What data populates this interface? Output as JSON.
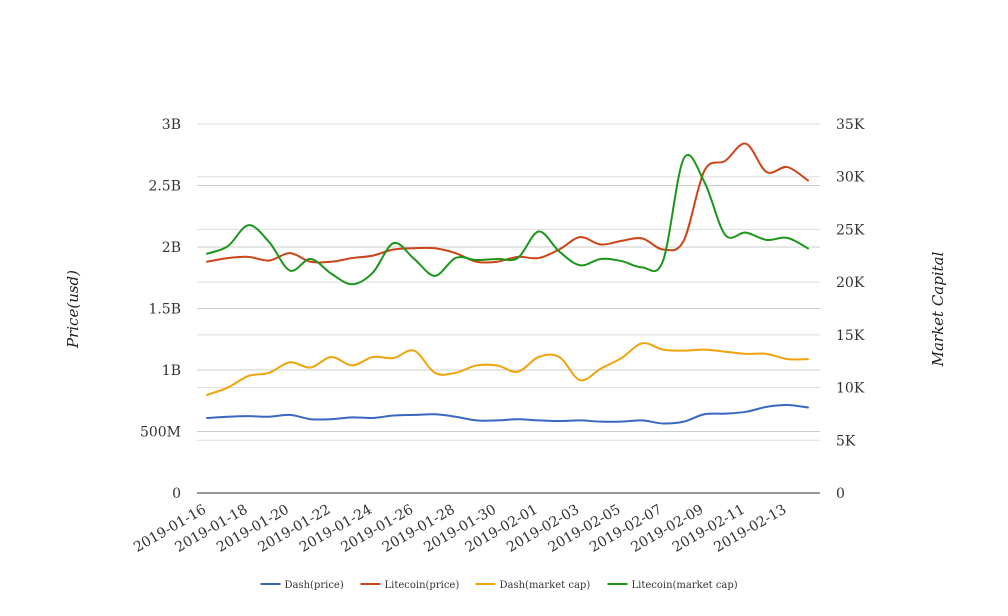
{
  "chart_data": {
    "type": "line",
    "title": "",
    "ylabel_left": "Price(usd)",
    "ylabel_right": "Market Capital",
    "ylim_left": [
      0,
      3000000000
    ],
    "ylim_right": [
      0,
      35000
    ],
    "left_ticks": [
      {
        "value": 0,
        "label": "0"
      },
      {
        "value": 500000000,
        "label": "500M"
      },
      {
        "value": 1000000000,
        "label": "1B"
      },
      {
        "value": 1500000000,
        "label": "1.5B"
      },
      {
        "value": 2000000000,
        "label": "2B"
      },
      {
        "value": 2500000000,
        "label": "2.5B"
      },
      {
        "value": 3000000000,
        "label": "3B"
      }
    ],
    "right_ticks": [
      {
        "value": 0,
        "label": "0"
      },
      {
        "value": 5000,
        "label": "5K"
      },
      {
        "value": 10000,
        "label": "10K"
      },
      {
        "value": 15000,
        "label": "15K"
      },
      {
        "value": 20000,
        "label": "20K"
      },
      {
        "value": 25000,
        "label": "25K"
      },
      {
        "value": 30000,
        "label": "30K"
      },
      {
        "value": 35000,
        "label": "35K"
      }
    ],
    "x": [
      "2019-01-16",
      "2019-01-17",
      "2019-01-18",
      "2019-01-19",
      "2019-01-20",
      "2019-01-21",
      "2019-01-22",
      "2019-01-23",
      "2019-01-24",
      "2019-01-25",
      "2019-01-26",
      "2019-01-27",
      "2019-01-28",
      "2019-01-29",
      "2019-01-30",
      "2019-01-31",
      "2019-02-01",
      "2019-02-02",
      "2019-02-03",
      "2019-02-04",
      "2019-02-05",
      "2019-02-06",
      "2019-02-07",
      "2019-02-08",
      "2019-02-09",
      "2019-02-10",
      "2019-02-11",
      "2019-02-12",
      "2019-02-13",
      "2019-02-14"
    ],
    "xtick_labels": [
      "2019-01-16",
      "2019-01-18",
      "2019-01-20",
      "2019-01-22",
      "2019-01-24",
      "2019-01-26",
      "2019-01-28",
      "2019-01-30",
      "2019-02-01",
      "2019-02-03",
      "2019-02-05",
      "2019-02-07",
      "2019-02-09",
      "2019-02-11",
      "2019-02-13"
    ],
    "legend_position": "bottom",
    "grid": true,
    "series": [
      {
        "name": "Dash(price)",
        "axis": "left",
        "color": "#3a67c0",
        "values": [
          610000000,
          620000000,
          625000000,
          620000000,
          635000000,
          600000000,
          600000000,
          615000000,
          610000000,
          630000000,
          635000000,
          640000000,
          620000000,
          590000000,
          590000000,
          600000000,
          590000000,
          585000000,
          590000000,
          580000000,
          580000000,
          590000000,
          565000000,
          580000000,
          640000000,
          645000000,
          660000000,
          700000000,
          715000000,
          695000000
        ]
      },
      {
        "name": "Litecoin(price)",
        "axis": "left",
        "color": "#cc4418",
        "values": [
          1880000000,
          1910000000,
          1920000000,
          1890000000,
          1950000000,
          1880000000,
          1880000000,
          1910000000,
          1930000000,
          1980000000,
          1990000000,
          1990000000,
          1950000000,
          1880000000,
          1880000000,
          1920000000,
          1910000000,
          1980000000,
          2080000000,
          2020000000,
          2050000000,
          2070000000,
          1980000000,
          2050000000,
          2620000000,
          2700000000,
          2840000000,
          2610000000,
          2650000000,
          2540000000
        ]
      },
      {
        "name": "Dash(market cap)",
        "axis": "right",
        "color": "#f0a30a",
        "values": [
          9300,
          10000,
          11100,
          11400,
          12400,
          11900,
          12900,
          12100,
          12900,
          12800,
          13500,
          11400,
          11400,
          12100,
          12100,
          11500,
          12900,
          12900,
          10700,
          11800,
          12800,
          14200,
          13600,
          13500,
          13600,
          13400,
          13200,
          13200,
          12700,
          12700
        ]
      },
      {
        "name": "Litecoin(market cap)",
        "axis": "right",
        "color": "#1b961b",
        "values": [
          22700,
          23400,
          25400,
          23800,
          21100,
          22200,
          20800,
          19800,
          20900,
          23700,
          22200,
          20600,
          22300,
          22100,
          22200,
          22300,
          24800,
          22900,
          21600,
          22200,
          22000,
          21400,
          22000,
          31700,
          29500,
          24500,
          24700,
          24000,
          24200,
          23200
        ]
      }
    ]
  }
}
